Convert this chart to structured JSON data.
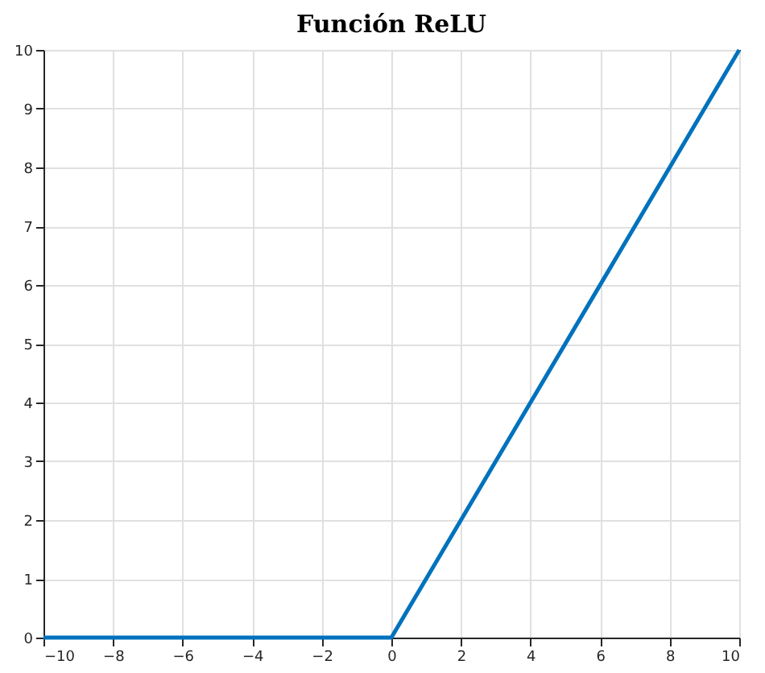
{
  "chart_data": {
    "type": "line",
    "title": "Función ReLU",
    "x": [
      -10,
      0,
      10
    ],
    "series": [
      {
        "color": "#0072bd",
        "values": [
          0,
          0,
          10
        ]
      }
    ],
    "xlim": [
      -10,
      10
    ],
    "xticks": [
      -10,
      -8,
      -6,
      -4,
      -2,
      0,
      2,
      4,
      6,
      8,
      10
    ],
    "ylim": [
      0,
      10
    ],
    "yticks": [
      0,
      1,
      2,
      3,
      4,
      5,
      6,
      7,
      8,
      9,
      10
    ],
    "grid": true,
    "marker": "none",
    "line_style": "solid"
  }
}
